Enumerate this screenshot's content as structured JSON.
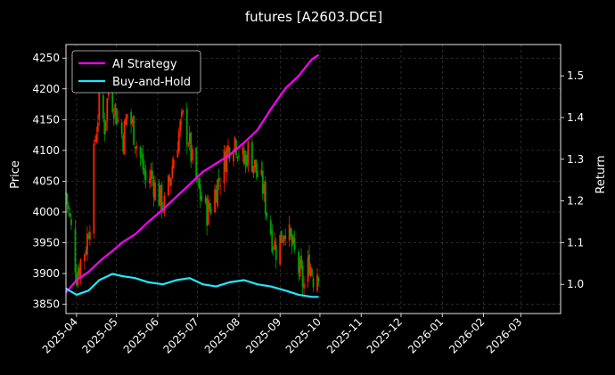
{
  "chart_data": {
    "type": "candlestick+line",
    "title": "futures [A2603.DCE]",
    "ylabel_left": "Price",
    "ylabel_right": "Return",
    "xlabel": "",
    "grid": true,
    "legend_position": "top-left",
    "x_range": [
      "2025-03-24",
      "2026-03-31"
    ],
    "y_left_range": [
      3835,
      4272
    ],
    "y_right_range": [
      0.93,
      1.575
    ],
    "x_ticks": [
      "2025-04",
      "2025-05",
      "2025-06",
      "2025-07",
      "2025-08",
      "2025-09",
      "2025-10",
      "2025-11",
      "2025-12",
      "2026-01",
      "2026-02",
      "2026-03"
    ],
    "y_left_ticks": [
      "3850",
      "3900",
      "3950",
      "4000",
      "4050",
      "4100",
      "4150",
      "4200",
      "4250"
    ],
    "y_right_ticks": [
      "1.0",
      "1.1",
      "1.2",
      "1.3",
      "1.4",
      "1.5"
    ],
    "colors": {
      "background": "#000000",
      "up_candle": "#ff2200",
      "down_candle": "#00a000",
      "strategy": "#ff00ff",
      "buyhold": "#22e8ff",
      "grid": "#555555"
    },
    "price_close": [
      [
        "2025-03-24",
        4030
      ],
      [
        "2025-03-28",
        3970
      ],
      [
        "2025-04-01",
        3900
      ],
      [
        "2025-04-04",
        3920
      ],
      [
        "2025-04-08",
        3945
      ],
      [
        "2025-04-11",
        3990
      ],
      [
        "2025-04-15",
        4120
      ],
      [
        "2025-04-18",
        4175
      ],
      [
        "2025-04-22",
        4140
      ],
      [
        "2025-04-25",
        4200
      ],
      [
        "2025-04-29",
        4175
      ],
      [
        "2025-05-02",
        4150
      ],
      [
        "2025-05-06",
        4120
      ],
      [
        "2025-05-09",
        4160
      ],
      [
        "2025-05-13",
        4140
      ],
      [
        "2025-05-16",
        4110
      ],
      [
        "2025-05-20",
        4080
      ],
      [
        "2025-05-23",
        4050
      ],
      [
        "2025-05-27",
        4060
      ],
      [
        "2025-05-30",
        4040
      ],
      [
        "2025-06-03",
        4020
      ],
      [
        "2025-06-06",
        4010
      ],
      [
        "2025-06-10",
        4050
      ],
      [
        "2025-06-13",
        4090
      ],
      [
        "2025-06-17",
        4130
      ],
      [
        "2025-06-20",
        4150
      ],
      [
        "2025-06-24",
        4120
      ],
      [
        "2025-06-27",
        4080
      ],
      [
        "2025-07-01",
        4040
      ],
      [
        "2025-07-04",
        4020
      ],
      [
        "2025-07-08",
        4000
      ],
      [
        "2025-07-11",
        4010
      ],
      [
        "2025-07-15",
        4040
      ],
      [
        "2025-07-18",
        4060
      ],
      [
        "2025-07-22",
        4090
      ],
      [
        "2025-07-25",
        4110
      ],
      [
        "2025-07-29",
        4120
      ],
      [
        "2025-08-01",
        4100
      ],
      [
        "2025-08-05",
        4080
      ],
      [
        "2025-08-08",
        4100
      ],
      [
        "2025-08-12",
        4080
      ],
      [
        "2025-08-15",
        4060
      ],
      [
        "2025-08-19",
        4040
      ],
      [
        "2025-08-22",
        4000
      ],
      [
        "2025-08-26",
        3960
      ],
      [
        "2025-08-29",
        3940
      ],
      [
        "2025-09-02",
        3960
      ],
      [
        "2025-09-05",
        3980
      ],
      [
        "2025-09-09",
        3950
      ],
      [
        "2025-09-12",
        3930
      ],
      [
        "2025-09-16",
        3900
      ],
      [
        "2025-09-19",
        3880
      ],
      [
        "2025-09-23",
        3920
      ],
      [
        "2025-09-26",
        3895
      ],
      [
        "2025-09-30",
        3910
      ]
    ],
    "series": [
      {
        "name": "AI Strategy",
        "points": [
          [
            "2025-03-24",
            0.98
          ],
          [
            "2025-04-01",
            1.01
          ],
          [
            "2025-04-10",
            1.03
          ],
          [
            "2025-04-20",
            1.06
          ],
          [
            "2025-04-28",
            1.08
          ],
          [
            "2025-05-05",
            1.1
          ],
          [
            "2025-05-15",
            1.12
          ],
          [
            "2025-05-25",
            1.15
          ],
          [
            "2025-06-05",
            1.18
          ],
          [
            "2025-06-15",
            1.21
          ],
          [
            "2025-06-25",
            1.24
          ],
          [
            "2025-07-05",
            1.27
          ],
          [
            "2025-07-15",
            1.29
          ],
          [
            "2025-07-25",
            1.31
          ],
          [
            "2025-08-05",
            1.34
          ],
          [
            "2025-08-15",
            1.37
          ],
          [
            "2025-08-25",
            1.42
          ],
          [
            "2025-09-05",
            1.47
          ],
          [
            "2025-09-15",
            1.5
          ],
          [
            "2025-09-25",
            1.54
          ],
          [
            "2025-09-30",
            1.55
          ]
        ]
      },
      {
        "name": "Buy-and-Hold",
        "points": [
          [
            "2025-03-24",
            0.99
          ],
          [
            "2025-04-01",
            0.975
          ],
          [
            "2025-04-10",
            0.985
          ],
          [
            "2025-04-18",
            1.01
          ],
          [
            "2025-04-28",
            1.025
          ],
          [
            "2025-05-05",
            1.02
          ],
          [
            "2025-05-15",
            1.015
          ],
          [
            "2025-05-25",
            1.005
          ],
          [
            "2025-06-05",
            1.0
          ],
          [
            "2025-06-15",
            1.01
          ],
          [
            "2025-06-25",
            1.015
          ],
          [
            "2025-07-05",
            1.0
          ],
          [
            "2025-07-15",
            0.995
          ],
          [
            "2025-07-25",
            1.005
          ],
          [
            "2025-08-05",
            1.01
          ],
          [
            "2025-08-15",
            1.0
          ],
          [
            "2025-08-25",
            0.995
          ],
          [
            "2025-09-05",
            0.985
          ],
          [
            "2025-09-15",
            0.975
          ],
          [
            "2025-09-25",
            0.97
          ],
          [
            "2025-09-30",
            0.97
          ]
        ]
      }
    ]
  }
}
